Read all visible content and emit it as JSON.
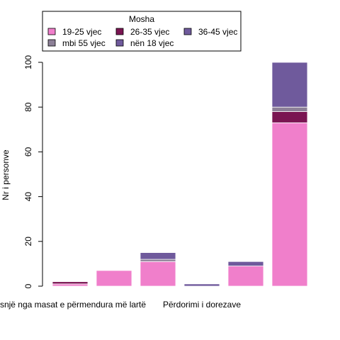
{
  "chart_data": {
    "type": "bar",
    "stacked": true,
    "ylabel": "Nr i personve",
    "ylim": [
      0,
      100
    ],
    "yticks": [
      0,
      20,
      40,
      60,
      80,
      100
    ],
    "categories": [
      "Asnjë nga masat e përmendura më lartë",
      "",
      "",
      "Përdorimi i dorezave",
      "",
      ""
    ],
    "x_tick_labels_shown": [
      {
        "category_index": 0,
        "text": "Asnjë nga masat e përmendura më lartë"
      },
      {
        "category_index": 3,
        "text": "Përdorimi i dorezave"
      }
    ],
    "legend": {
      "title": "Mosha",
      "placement": "top",
      "entries": [
        "19-25 vjec",
        "26-35 vjec",
        "36-45 vjec",
        "mbi 55 vjec",
        "nën 18 vjec"
      ]
    },
    "series": [
      {
        "name": "19-25 vjec",
        "color": "#F07FCB",
        "values": [
          1,
          7,
          11,
          0,
          9,
          73
        ]
      },
      {
        "name": "26-35 vjec",
        "color": "#7A1552",
        "values": [
          1,
          0,
          0,
          0,
          0,
          5
        ]
      },
      {
        "name": "mbi 55 vjec",
        "color": "#8C8097",
        "values": [
          0,
          0,
          1,
          0,
          0,
          2
        ]
      },
      {
        "name": "36-45 vjec",
        "color": "#6F5A9C",
        "values": [
          0,
          0,
          3,
          1,
          2,
          20
        ]
      },
      {
        "name": "nën 18 vjec",
        "color": "#6F5A9C",
        "values": [
          0,
          0,
          0,
          0,
          0,
          0
        ]
      }
    ]
  }
}
